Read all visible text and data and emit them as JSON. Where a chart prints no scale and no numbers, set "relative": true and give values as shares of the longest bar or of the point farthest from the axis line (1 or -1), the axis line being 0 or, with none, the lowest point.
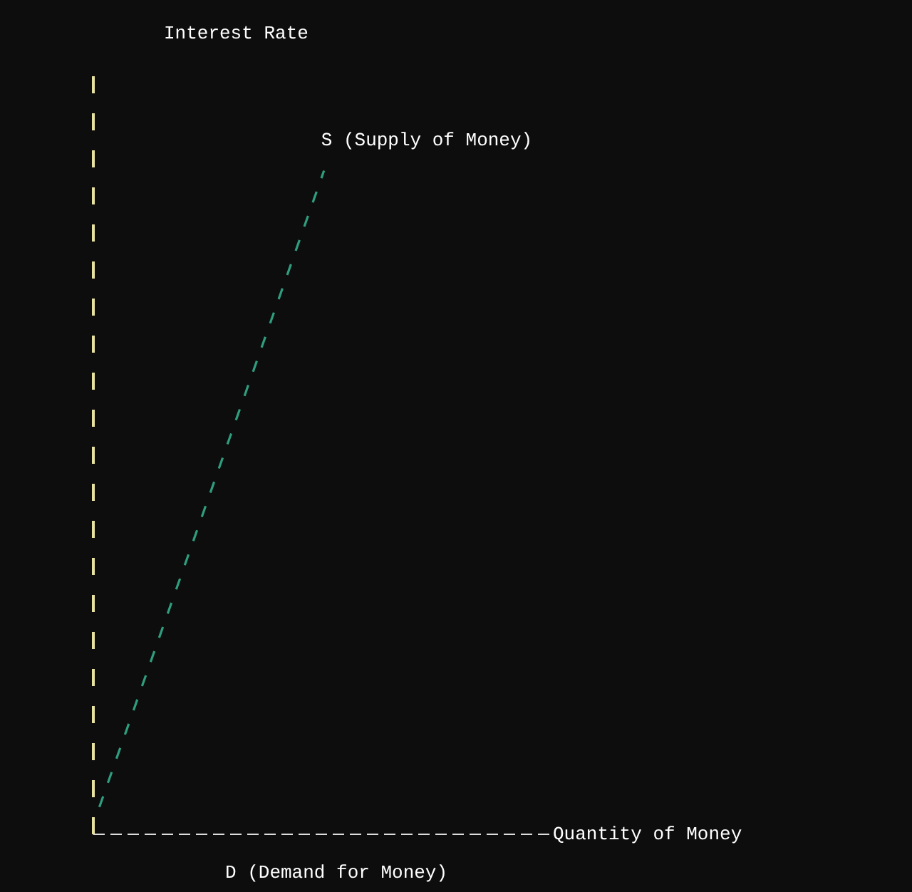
{
  "chart_data": {
    "type": "line",
    "relative": true,
    "categories": [
      null,
      null
    ],
    "series": [
      {
        "color": "#2f9e7e",
        "values": [
          0.04,
          1
        ]
      }
    ],
    "annotations": [
      "S (Supply of Money)",
      "D (Demand for Money)",
      "Interest Rate",
      "Quantity of Money"
    ],
    "line_style": "dashed",
    "marker": "none"
  }
}
